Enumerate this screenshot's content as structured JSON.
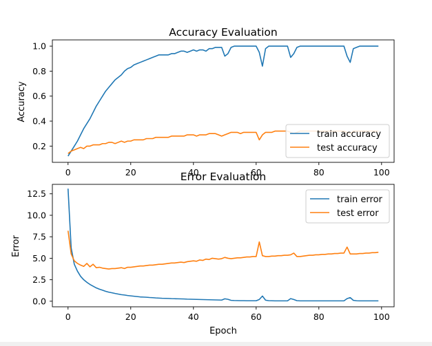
{
  "chart_data": [
    {
      "type": "line",
      "title": "Accuracy Evaluation",
      "xlabel": "",
      "ylabel": "Accuracy",
      "xlim": [
        -5,
        104
      ],
      "ylim": [
        0.07,
        1.05
      ],
      "xticks": [
        0,
        20,
        40,
        60,
        80,
        100
      ],
      "yticks": [
        0.2,
        0.4,
        0.6,
        0.8,
        1.0
      ],
      "ytick_labels": [
        "0.2",
        "0.4",
        "0.6",
        "0.8",
        "1.0"
      ],
      "legend": "lower-right",
      "grid": false,
      "series": [
        {
          "name": "train accuracy",
          "color": "#1f77b4",
          "x": [
            0,
            1,
            2,
            3,
            4,
            5,
            6,
            7,
            8,
            9,
            10,
            11,
            12,
            13,
            14,
            15,
            16,
            17,
            18,
            19,
            20,
            21,
            22,
            23,
            24,
            25,
            26,
            27,
            28,
            29,
            30,
            31,
            32,
            33,
            34,
            35,
            36,
            37,
            38,
            39,
            40,
            41,
            42,
            43,
            44,
            45,
            46,
            47,
            48,
            49,
            50,
            51,
            52,
            53,
            54,
            55,
            56,
            57,
            58,
            59,
            60,
            61,
            62,
            63,
            64,
            65,
            66,
            67,
            68,
            69,
            70,
            71,
            72,
            73,
            74,
            75,
            76,
            77,
            78,
            79,
            80,
            81,
            82,
            83,
            84,
            85,
            86,
            87,
            88,
            89,
            90,
            91,
            92,
            93,
            94,
            95,
            96,
            97,
            98,
            99
          ],
          "values": [
            0.12,
            0.16,
            0.2,
            0.24,
            0.29,
            0.34,
            0.38,
            0.42,
            0.47,
            0.52,
            0.56,
            0.6,
            0.64,
            0.67,
            0.7,
            0.73,
            0.75,
            0.77,
            0.8,
            0.82,
            0.83,
            0.85,
            0.86,
            0.87,
            0.88,
            0.89,
            0.9,
            0.91,
            0.92,
            0.93,
            0.93,
            0.93,
            0.93,
            0.94,
            0.94,
            0.95,
            0.96,
            0.96,
            0.95,
            0.96,
            0.97,
            0.96,
            0.97,
            0.97,
            0.96,
            0.98,
            0.98,
            0.99,
            0.99,
            0.99,
            0.92,
            0.94,
            0.99,
            1.0,
            1.0,
            1.0,
            1.0,
            1.0,
            1.0,
            1.0,
            1.0,
            0.95,
            0.84,
            0.98,
            1.0,
            1.0,
            1.0,
            1.0,
            1.0,
            1.0,
            1.0,
            0.91,
            0.94,
            0.99,
            1.0,
            1.0,
            1.0,
            1.0,
            1.0,
            1.0,
            1.0,
            1.0,
            1.0,
            1.0,
            1.0,
            1.0,
            1.0,
            1.0,
            1.0,
            0.92,
            0.87,
            0.98,
            0.99,
            1.0,
            1.0,
            1.0,
            1.0,
            1.0,
            1.0,
            1.0
          ]
        },
        {
          "name": "test accuracy",
          "color": "#ff7f0e",
          "x": [
            0,
            1,
            2,
            3,
            4,
            5,
            6,
            7,
            8,
            9,
            10,
            11,
            12,
            13,
            14,
            15,
            16,
            17,
            18,
            19,
            20,
            21,
            22,
            23,
            24,
            25,
            26,
            27,
            28,
            29,
            30,
            31,
            32,
            33,
            34,
            35,
            36,
            37,
            38,
            39,
            40,
            41,
            42,
            43,
            44,
            45,
            46,
            47,
            48,
            49,
            50,
            51,
            52,
            53,
            54,
            55,
            56,
            57,
            58,
            59,
            60,
            61,
            62,
            63,
            64,
            65,
            66,
            67,
            68,
            69,
            70,
            71,
            72,
            73,
            74,
            75,
            76,
            77,
            78,
            79,
            80,
            81,
            82,
            83,
            84,
            85,
            86,
            87,
            88,
            89,
            90,
            91,
            92,
            93,
            94,
            95,
            96,
            97,
            98,
            99
          ],
          "values": [
            0.14,
            0.16,
            0.17,
            0.18,
            0.19,
            0.18,
            0.2,
            0.2,
            0.21,
            0.21,
            0.21,
            0.22,
            0.22,
            0.23,
            0.23,
            0.22,
            0.23,
            0.24,
            0.23,
            0.24,
            0.24,
            0.25,
            0.25,
            0.25,
            0.25,
            0.26,
            0.26,
            0.26,
            0.27,
            0.27,
            0.27,
            0.27,
            0.27,
            0.28,
            0.28,
            0.28,
            0.28,
            0.28,
            0.29,
            0.29,
            0.29,
            0.28,
            0.29,
            0.29,
            0.29,
            0.3,
            0.3,
            0.3,
            0.29,
            0.28,
            0.29,
            0.3,
            0.31,
            0.31,
            0.31,
            0.3,
            0.31,
            0.31,
            0.31,
            0.31,
            0.31,
            0.25,
            0.29,
            0.31,
            0.31,
            0.31,
            0.32,
            0.32,
            0.32,
            0.32,
            0.32,
            0.31,
            0.3,
            0.31,
            0.32,
            0.32,
            0.32,
            0.32,
            0.32,
            0.32,
            0.32,
            0.32,
            0.32,
            0.32,
            0.32,
            0.32,
            0.32,
            0.32,
            0.32,
            0.31,
            0.3,
            0.32,
            0.32,
            0.32,
            0.32,
            0.32,
            0.32,
            0.32,
            0.32,
            0.32
          ]
        }
      ]
    },
    {
      "type": "line",
      "title": "Error Evaluation",
      "xlabel": "Epoch",
      "ylabel": "Error",
      "xlim": [
        -5,
        104
      ],
      "ylim": [
        -0.65,
        13.6
      ],
      "xticks": [
        0,
        20,
        40,
        60,
        80,
        100
      ],
      "yticks": [
        0.0,
        2.5,
        5.0,
        7.5,
        10.0,
        12.5
      ],
      "ytick_labels": [
        "0.0",
        "2.5",
        "5.0",
        "7.5",
        "10.0",
        "12.5"
      ],
      "legend": "upper-right",
      "grid": false,
      "series": [
        {
          "name": "train error",
          "color": "#1f77b4",
          "x": [
            0,
            1,
            2,
            3,
            4,
            5,
            6,
            7,
            8,
            9,
            10,
            11,
            12,
            13,
            14,
            15,
            16,
            17,
            18,
            19,
            20,
            21,
            22,
            23,
            24,
            25,
            26,
            27,
            28,
            29,
            30,
            31,
            32,
            33,
            34,
            35,
            36,
            37,
            38,
            39,
            40,
            41,
            42,
            43,
            44,
            45,
            46,
            47,
            48,
            49,
            50,
            51,
            52,
            53,
            54,
            55,
            56,
            57,
            58,
            59,
            60,
            61,
            62,
            63,
            64,
            65,
            66,
            67,
            68,
            69,
            70,
            71,
            72,
            73,
            74,
            75,
            76,
            77,
            78,
            79,
            80,
            81,
            82,
            83,
            84,
            85,
            86,
            87,
            88,
            89,
            90,
            91,
            92,
            93,
            94,
            95,
            96,
            97,
            98,
            99
          ],
          "values": [
            13.1,
            6.2,
            4.3,
            3.5,
            2.9,
            2.5,
            2.2,
            1.95,
            1.75,
            1.55,
            1.4,
            1.28,
            1.15,
            1.05,
            0.98,
            0.9,
            0.83,
            0.76,
            0.72,
            0.66,
            0.62,
            0.58,
            0.54,
            0.5,
            0.48,
            0.46,
            0.43,
            0.41,
            0.38,
            0.36,
            0.34,
            0.33,
            0.32,
            0.3,
            0.29,
            0.28,
            0.27,
            0.26,
            0.24,
            0.23,
            0.22,
            0.21,
            0.2,
            0.19,
            0.18,
            0.17,
            0.16,
            0.15,
            0.14,
            0.13,
            0.28,
            0.22,
            0.1,
            0.08,
            0.07,
            0.06,
            0.06,
            0.05,
            0.05,
            0.05,
            0.05,
            0.2,
            0.6,
            0.12,
            0.06,
            0.05,
            0.04,
            0.04,
            0.04,
            0.04,
            0.04,
            0.3,
            0.2,
            0.06,
            0.04,
            0.04,
            0.04,
            0.04,
            0.04,
            0.04,
            0.04,
            0.04,
            0.04,
            0.04,
            0.04,
            0.04,
            0.04,
            0.04,
            0.04,
            0.3,
            0.42,
            0.1,
            0.05,
            0.04,
            0.04,
            0.04,
            0.04,
            0.04,
            0.04,
            0.04
          ]
        },
        {
          "name": "test error",
          "color": "#ff7f0e",
          "x": [
            0,
            1,
            2,
            3,
            4,
            5,
            6,
            7,
            8,
            9,
            10,
            11,
            12,
            13,
            14,
            15,
            16,
            17,
            18,
            19,
            20,
            21,
            22,
            23,
            24,
            25,
            26,
            27,
            28,
            29,
            30,
            31,
            32,
            33,
            34,
            35,
            36,
            37,
            38,
            39,
            40,
            41,
            42,
            43,
            44,
            45,
            46,
            47,
            48,
            49,
            50,
            51,
            52,
            53,
            54,
            55,
            56,
            57,
            58,
            59,
            60,
            61,
            62,
            63,
            64,
            65,
            66,
            67,
            68,
            69,
            70,
            71,
            72,
            73,
            74,
            75,
            76,
            77,
            78,
            79,
            80,
            81,
            82,
            83,
            84,
            85,
            86,
            87,
            88,
            89,
            90,
            91,
            92,
            93,
            94,
            95,
            96,
            97,
            98,
            99
          ],
          "values": [
            8.2,
            5.5,
            4.7,
            4.4,
            4.2,
            4.05,
            4.4,
            4.0,
            4.3,
            3.9,
            3.95,
            3.85,
            3.8,
            3.75,
            3.8,
            3.8,
            3.85,
            3.9,
            3.8,
            3.95,
            3.95,
            4.0,
            4.05,
            4.1,
            4.1,
            4.15,
            4.2,
            4.2,
            4.25,
            4.3,
            4.3,
            4.35,
            4.4,
            4.45,
            4.45,
            4.5,
            4.55,
            4.5,
            4.6,
            4.65,
            4.7,
            4.65,
            4.8,
            4.75,
            4.9,
            4.85,
            5.0,
            4.95,
            4.9,
            4.95,
            5.1,
            5.0,
            4.95,
            5.0,
            5.05,
            5.05,
            5.1,
            5.15,
            5.15,
            5.2,
            5.2,
            6.9,
            5.3,
            5.2,
            5.2,
            5.25,
            5.25,
            5.3,
            5.3,
            5.35,
            5.35,
            5.4,
            5.6,
            5.2,
            5.2,
            5.25,
            5.3,
            5.35,
            5.35,
            5.4,
            5.4,
            5.45,
            5.45,
            5.5,
            5.5,
            5.55,
            5.55,
            5.6,
            5.6,
            6.3,
            5.5,
            5.5,
            5.5,
            5.55,
            5.55,
            5.6,
            5.6,
            5.65,
            5.65,
            5.7
          ]
        }
      ]
    }
  ]
}
